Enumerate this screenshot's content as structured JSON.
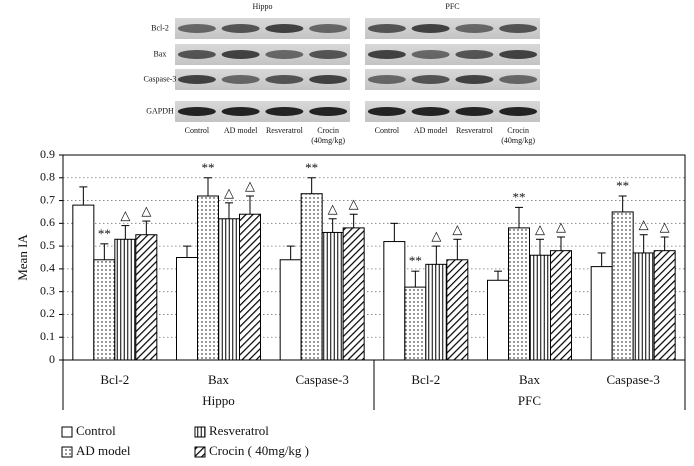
{
  "blot": {
    "panels": [
      "Hippo",
      "PFC"
    ],
    "rows": [
      "Bcl-2",
      "Bax",
      "Caspase-3",
      "GAPDH"
    ],
    "columns": [
      [
        "Control"
      ],
      [
        "AD model"
      ],
      [
        "Resveratrol"
      ],
      [
        "Crocin",
        "(40mg/kg)"
      ]
    ]
  },
  "chart_data": {
    "type": "bar",
    "y_label": "Mean IA",
    "categories": [
      "Bcl-2",
      "Bax",
      "Caspase-3",
      "Bcl-2",
      "Bax",
      "Caspase-3"
    ],
    "groups": [
      "Hippo",
      "PFC"
    ],
    "ylim": [
      0,
      0.9
    ],
    "yticks": [
      0,
      0.1,
      0.2,
      0.3,
      0.4,
      0.5,
      0.6,
      0.7,
      0.8,
      0.9
    ],
    "grid": true,
    "series": [
      {
        "name": "Control",
        "pattern": "none",
        "color": "#000000",
        "values": [
          0.68,
          0.45,
          0.44,
          0.52,
          0.35,
          0.41
        ],
        "errors": [
          0.08,
          0.05,
          0.06,
          0.08,
          0.04,
          0.06
        ]
      },
      {
        "name": "AD model",
        "pattern": "dots",
        "color": "#000000",
        "annotation": "**",
        "values": [
          0.44,
          0.72,
          0.73,
          0.32,
          0.58,
          0.65
        ],
        "errors": [
          0.07,
          0.08,
          0.07,
          0.07,
          0.09,
          0.07
        ]
      },
      {
        "name": "Resveratrol",
        "pattern": "vertical",
        "color": "#000000",
        "annotation": "△",
        "values": [
          0.53,
          0.62,
          0.56,
          0.42,
          0.46,
          0.47
        ],
        "errors": [
          0.06,
          0.07,
          0.06,
          0.08,
          0.07,
          0.08
        ]
      },
      {
        "name": "Crocin ( 40mg/kg )",
        "pattern": "diagonal",
        "color": "#000000",
        "annotation": "△",
        "values": [
          0.55,
          0.64,
          0.58,
          0.44,
          0.48,
          0.48
        ],
        "errors": [
          0.06,
          0.08,
          0.06,
          0.09,
          0.06,
          0.06
        ]
      }
    ]
  }
}
